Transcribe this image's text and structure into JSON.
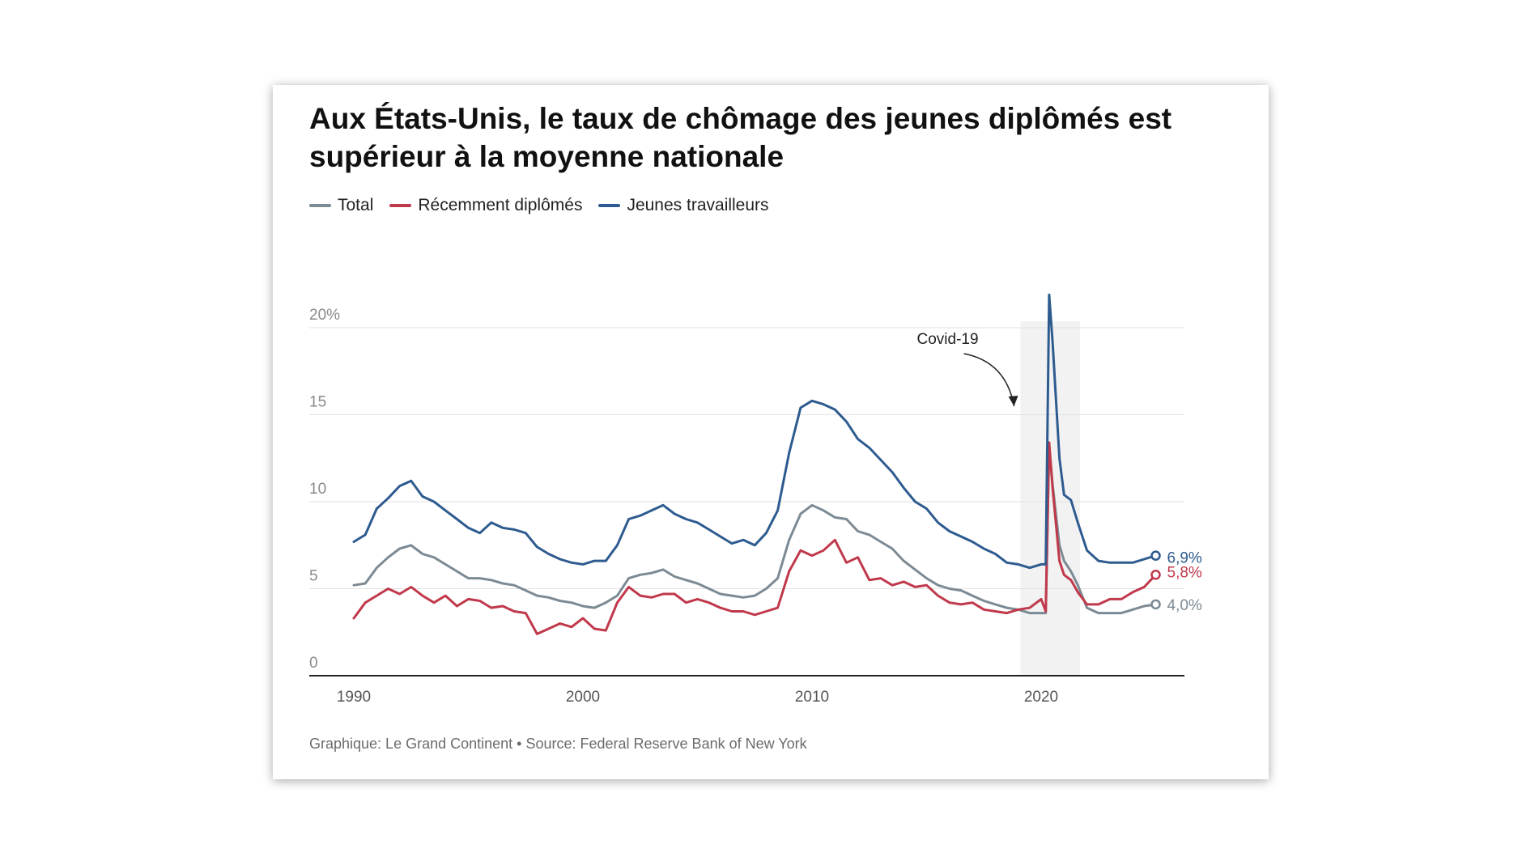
{
  "title": "Aux États-Unis, le taux de chômage des jeunes diplômés est supérieur à la moyenne nationale",
  "caption": "Graphique: Le Grand Continent • Source: Federal Reserve Bank of New York",
  "chart_data": {
    "type": "line",
    "title": "Aux États-Unis, le taux de chômage des jeunes diplômés est supérieur à la moyenne nationale",
    "xlabel": "",
    "ylabel": "",
    "xlim": [
      1990,
      2025.5
    ],
    "ylim": [
      0,
      20
    ],
    "x_ticks": [
      1990,
      2000,
      2010,
      2020
    ],
    "y_ticks": [
      {
        "value": 0,
        "label": "0"
      },
      {
        "value": 5,
        "label": "5"
      },
      {
        "value": 10,
        "label": "10"
      },
      {
        "value": 15,
        "label": "15"
      },
      {
        "value": 20,
        "label": "20%"
      }
    ],
    "grid": "horizontal",
    "legend_position": "top-left",
    "annotation": {
      "label": "Covid-19",
      "shade_from": 2019.1,
      "shade_to": 2021.7
    },
    "series": [
      {
        "name": "Total",
        "color": "#7c8a94",
        "end_label": "4,0%",
        "points": [
          [
            1990,
            5.2
          ],
          [
            1990.5,
            5.3
          ],
          [
            1991,
            6.2
          ],
          [
            1991.5,
            6.8
          ],
          [
            1992,
            7.3
          ],
          [
            1992.5,
            7.5
          ],
          [
            1993,
            7.0
          ],
          [
            1993.5,
            6.8
          ],
          [
            1994,
            6.4
          ],
          [
            1994.5,
            6.0
          ],
          [
            1995,
            5.6
          ],
          [
            1995.5,
            5.6
          ],
          [
            1996,
            5.5
          ],
          [
            1996.5,
            5.3
          ],
          [
            1997,
            5.2
          ],
          [
            1997.5,
            4.9
          ],
          [
            1998,
            4.6
          ],
          [
            1998.5,
            4.5
          ],
          [
            1999,
            4.3
          ],
          [
            1999.5,
            4.2
          ],
          [
            2000,
            4.0
          ],
          [
            2000.5,
            3.9
          ],
          [
            2001,
            4.2
          ],
          [
            2001.5,
            4.6
          ],
          [
            2002,
            5.6
          ],
          [
            2002.5,
            5.8
          ],
          [
            2003,
            5.9
          ],
          [
            2003.5,
            6.1
          ],
          [
            2004,
            5.7
          ],
          [
            2004.5,
            5.5
          ],
          [
            2005,
            5.3
          ],
          [
            2005.5,
            5.0
          ],
          [
            2006,
            4.7
          ],
          [
            2006.5,
            4.6
          ],
          [
            2007,
            4.5
          ],
          [
            2007.5,
            4.6
          ],
          [
            2008,
            5.0
          ],
          [
            2008.5,
            5.6
          ],
          [
            2009,
            7.8
          ],
          [
            2009.5,
            9.3
          ],
          [
            2010,
            9.8
          ],
          [
            2010.5,
            9.5
          ],
          [
            2011,
            9.1
          ],
          [
            2011.5,
            9.0
          ],
          [
            2012,
            8.3
          ],
          [
            2012.5,
            8.1
          ],
          [
            2013,
            7.7
          ],
          [
            2013.5,
            7.3
          ],
          [
            2014,
            6.6
          ],
          [
            2014.5,
            6.1
          ],
          [
            2015,
            5.6
          ],
          [
            2015.5,
            5.2
          ],
          [
            2016,
            5.0
          ],
          [
            2016.5,
            4.9
          ],
          [
            2017,
            4.6
          ],
          [
            2017.5,
            4.3
          ],
          [
            2018,
            4.1
          ],
          [
            2018.5,
            3.9
          ],
          [
            2019,
            3.8
          ],
          [
            2019.5,
            3.6
          ],
          [
            2020,
            3.6
          ],
          [
            2020.2,
            3.6
          ],
          [
            2020.35,
            13.2
          ],
          [
            2020.5,
            11.0
          ],
          [
            2020.8,
            7.5
          ],
          [
            2021,
            6.6
          ],
          [
            2021.3,
            6.0
          ],
          [
            2021.6,
            5.2
          ],
          [
            2022,
            3.9
          ],
          [
            2022.5,
            3.6
          ],
          [
            2023,
            3.6
          ],
          [
            2023.5,
            3.6
          ],
          [
            2024,
            3.8
          ],
          [
            2024.5,
            4.0
          ],
          [
            2025,
            4.1
          ]
        ]
      },
      {
        "name": "Récemment diplômés",
        "color": "#c0394b",
        "end_label": "5,8%",
        "points": [
          [
            1990,
            3.3
          ],
          [
            1990.5,
            4.2
          ],
          [
            1991,
            4.6
          ],
          [
            1991.5,
            5.0
          ],
          [
            1992,
            4.7
          ],
          [
            1992.5,
            5.1
          ],
          [
            1993,
            4.6
          ],
          [
            1993.5,
            4.2
          ],
          [
            1994,
            4.6
          ],
          [
            1994.5,
            4.0
          ],
          [
            1995,
            4.4
          ],
          [
            1995.5,
            4.3
          ],
          [
            1996,
            3.9
          ],
          [
            1996.5,
            4.0
          ],
          [
            1997,
            3.7
          ],
          [
            1997.5,
            3.6
          ],
          [
            1998,
            2.4
          ],
          [
            1998.5,
            2.7
          ],
          [
            1999,
            3.0
          ],
          [
            1999.5,
            2.8
          ],
          [
            2000,
            3.3
          ],
          [
            2000.5,
            2.7
          ],
          [
            2001,
            2.6
          ],
          [
            2001.5,
            4.2
          ],
          [
            2002,
            5.1
          ],
          [
            2002.5,
            4.6
          ],
          [
            2003,
            4.5
          ],
          [
            2003.5,
            4.7
          ],
          [
            2004,
            4.7
          ],
          [
            2004.5,
            4.2
          ],
          [
            2005,
            4.4
          ],
          [
            2005.5,
            4.2
          ],
          [
            2006,
            3.9
          ],
          [
            2006.5,
            3.7
          ],
          [
            2007,
            3.7
          ],
          [
            2007.5,
            3.5
          ],
          [
            2008,
            3.7
          ],
          [
            2008.5,
            3.9
          ],
          [
            2009,
            6.0
          ],
          [
            2009.5,
            7.2
          ],
          [
            2010,
            6.9
          ],
          [
            2010.5,
            7.2
          ],
          [
            2011,
            7.8
          ],
          [
            2011.5,
            6.5
          ],
          [
            2012,
            6.8
          ],
          [
            2012.5,
            5.5
          ],
          [
            2013,
            5.6
          ],
          [
            2013.5,
            5.2
          ],
          [
            2014,
            5.4
          ],
          [
            2014.5,
            5.1
          ],
          [
            2015,
            5.2
          ],
          [
            2015.5,
            4.6
          ],
          [
            2016,
            4.2
          ],
          [
            2016.5,
            4.1
          ],
          [
            2017,
            4.2
          ],
          [
            2017.5,
            3.8
          ],
          [
            2018,
            3.7
          ],
          [
            2018.5,
            3.6
          ],
          [
            2019,
            3.8
          ],
          [
            2019.5,
            3.9
          ],
          [
            2020,
            4.4
          ],
          [
            2020.2,
            3.7
          ],
          [
            2020.35,
            13.4
          ],
          [
            2020.5,
            10.8
          ],
          [
            2020.8,
            6.6
          ],
          [
            2021,
            5.8
          ],
          [
            2021.3,
            5.5
          ],
          [
            2021.6,
            4.8
          ],
          [
            2022,
            4.1
          ],
          [
            2022.5,
            4.1
          ],
          [
            2023,
            4.4
          ],
          [
            2023.5,
            4.4
          ],
          [
            2024,
            4.8
          ],
          [
            2024.5,
            5.1
          ],
          [
            2025,
            5.8
          ]
        ]
      },
      {
        "name": "Jeunes travailleurs",
        "color": "#2e5b8f",
        "end_label": "6,9%",
        "points": [
          [
            1990,
            7.7
          ],
          [
            1990.5,
            8.1
          ],
          [
            1991,
            9.6
          ],
          [
            1991.5,
            10.2
          ],
          [
            1992,
            10.9
          ],
          [
            1992.5,
            11.2
          ],
          [
            1993,
            10.3
          ],
          [
            1993.5,
            10.0
          ],
          [
            1994,
            9.5
          ],
          [
            1994.5,
            9.0
          ],
          [
            1995,
            8.5
          ],
          [
            1995.5,
            8.2
          ],
          [
            1996,
            8.8
          ],
          [
            1996.5,
            8.5
          ],
          [
            1997,
            8.4
          ],
          [
            1997.5,
            8.2
          ],
          [
            1998,
            7.4
          ],
          [
            1998.5,
            7.0
          ],
          [
            1999,
            6.7
          ],
          [
            1999.5,
            6.5
          ],
          [
            2000,
            6.4
          ],
          [
            2000.5,
            6.6
          ],
          [
            2001,
            6.6
          ],
          [
            2001.5,
            7.5
          ],
          [
            2002,
            9.0
          ],
          [
            2002.5,
            9.2
          ],
          [
            2003,
            9.5
          ],
          [
            2003.5,
            9.8
          ],
          [
            2004,
            9.3
          ],
          [
            2004.5,
            9.0
          ],
          [
            2005,
            8.8
          ],
          [
            2005.5,
            8.4
          ],
          [
            2006,
            8.0
          ],
          [
            2006.5,
            7.6
          ],
          [
            2007,
            7.8
          ],
          [
            2007.5,
            7.5
          ],
          [
            2008,
            8.2
          ],
          [
            2008.5,
            9.5
          ],
          [
            2009,
            12.8
          ],
          [
            2009.5,
            15.4
          ],
          [
            2010,
            15.8
          ],
          [
            2010.5,
            15.6
          ],
          [
            2011,
            15.3
          ],
          [
            2011.5,
            14.6
          ],
          [
            2012,
            13.6
          ],
          [
            2012.5,
            13.1
          ],
          [
            2013,
            12.4
          ],
          [
            2013.5,
            11.7
          ],
          [
            2014,
            10.8
          ],
          [
            2014.5,
            10.0
          ],
          [
            2015,
            9.6
          ],
          [
            2015.5,
            8.8
          ],
          [
            2016,
            8.3
          ],
          [
            2016.5,
            8.0
          ],
          [
            2017,
            7.7
          ],
          [
            2017.5,
            7.3
          ],
          [
            2018,
            7.0
          ],
          [
            2018.5,
            6.5
          ],
          [
            2019,
            6.4
          ],
          [
            2019.5,
            6.2
          ],
          [
            2020,
            6.4
          ],
          [
            2020.2,
            6.4
          ],
          [
            2020.35,
            21.9
          ],
          [
            2020.5,
            19.2
          ],
          [
            2020.8,
            12.5
          ],
          [
            2021,
            10.4
          ],
          [
            2021.3,
            10.1
          ],
          [
            2021.6,
            8.8
          ],
          [
            2022,
            7.2
          ],
          [
            2022.5,
            6.6
          ],
          [
            2023,
            6.5
          ],
          [
            2023.5,
            6.5
          ],
          [
            2024,
            6.5
          ],
          [
            2024.5,
            6.7
          ],
          [
            2025,
            6.9
          ]
        ]
      }
    ]
  }
}
